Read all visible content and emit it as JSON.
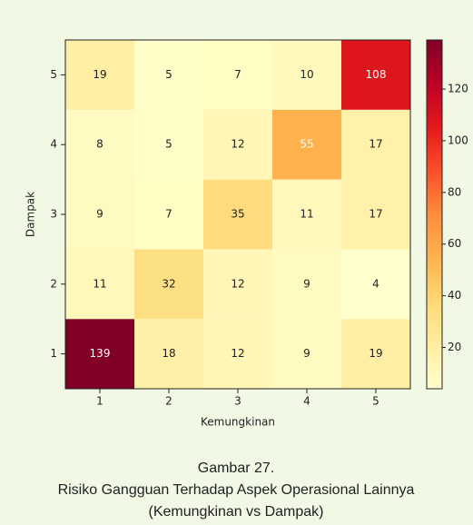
{
  "chart_data": {
    "type": "heatmap",
    "x_label": "Kemungkinan",
    "y_label": "Dampak",
    "x_categories": [
      1,
      2,
      3,
      4,
      5
    ],
    "y_categories": [
      1,
      2,
      3,
      4,
      5
    ],
    "values": [
      [
        139,
        18,
        12,
        9,
        19
      ],
      [
        11,
        32,
        12,
        9,
        4
      ],
      [
        9,
        7,
        35,
        11,
        17
      ],
      [
        8,
        5,
        12,
        55,
        17
      ],
      [
        19,
        5,
        7,
        10,
        108
      ]
    ],
    "colormap": "YlOrRd",
    "clim": [
      4,
      139
    ],
    "cticks": [
      20,
      40,
      60,
      80,
      100,
      120
    ],
    "caption": [
      "Gambar 27.",
      "Risiko Gangguan Terhadap Aspek Operasional Lainnya",
      "(Kemungkinan vs Dampak)"
    ]
  }
}
